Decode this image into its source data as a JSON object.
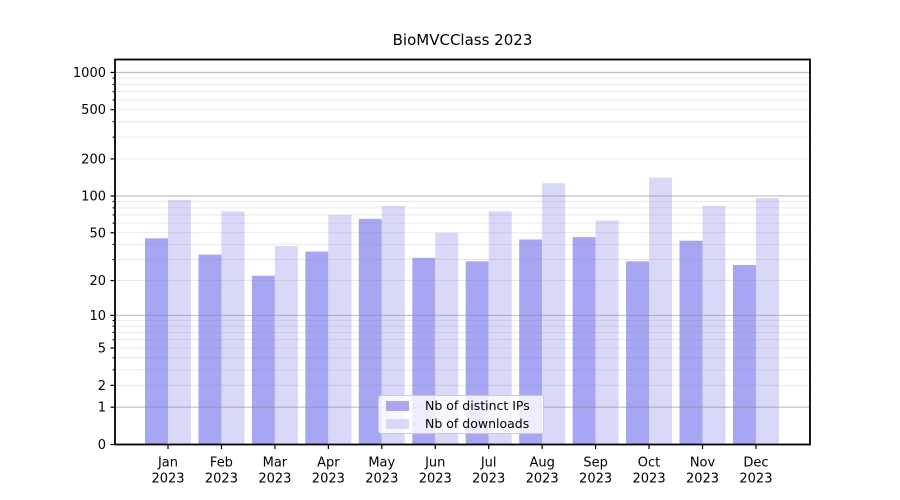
{
  "figure": {
    "title": "BioMVCClass 2023",
    "background_color": "#ffffff"
  },
  "legend": {
    "position": "lower center",
    "entries": [
      {
        "label": "Nb of distinct IPs",
        "swatch_color": "#a6a6f4"
      },
      {
        "label": "Nb of downloads",
        "swatch_color": "#d8d8f8"
      }
    ]
  },
  "chart_data": {
    "type": "bar",
    "title": "BioMVCClass 2023",
    "categories": [
      "Jan 2023",
      "Feb 2023",
      "Mar 2023",
      "Apr 2023",
      "May 2023",
      "Jun 2023",
      "Jul 2023",
      "Aug 2023",
      "Sep 2023",
      "Oct 2023",
      "Nov 2023",
      "Dec 2023"
    ],
    "month_labels": [
      "Jan",
      "Feb",
      "Mar",
      "Apr",
      "May",
      "Jun",
      "Jul",
      "Aug",
      "Sep",
      "Oct",
      "Nov",
      "Dec"
    ],
    "year_label": "2023",
    "series": [
      {
        "name": "Nb of distinct IPs",
        "color": "#a6a6f4",
        "values": [
          45,
          33,
          22,
          35,
          65,
          31,
          29,
          44,
          46,
          29,
          43,
          27
        ]
      },
      {
        "name": "Nb of downloads",
        "color": "#d8d8f8",
        "values": [
          93,
          75,
          39,
          70,
          83,
          50,
          75,
          127,
          63,
          141,
          83,
          96
        ]
      }
    ],
    "xlabel": "",
    "ylabel": "",
    "yscale": "log1p",
    "ylim": [
      0,
      1270
    ],
    "yticks": [
      1000,
      500,
      200,
      100,
      50,
      20,
      10,
      5,
      2,
      1,
      0
    ],
    "ytick_labels": [
      "1000",
      "500",
      "200",
      "100",
      "50",
      "20",
      "10",
      "5",
      "2",
      "1",
      "0"
    ],
    "grid": {
      "major": true,
      "minor": true
    },
    "legend_position": "lower center"
  },
  "colors": {
    "major_grid": "#878787",
    "minor_grid": "#888888",
    "axis": "#000000",
    "text": "#000000"
  }
}
